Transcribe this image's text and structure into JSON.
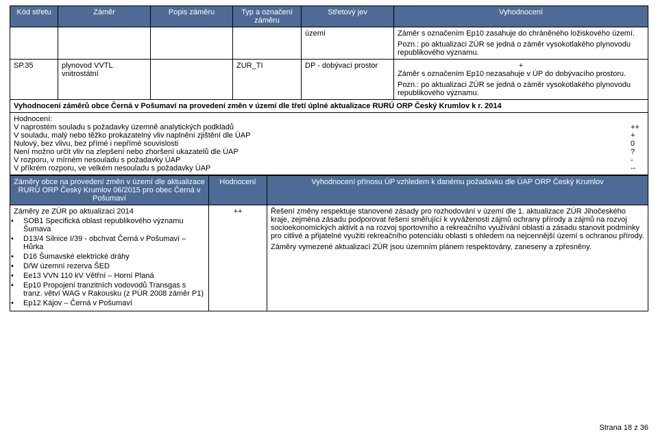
{
  "table1": {
    "headers": {
      "kod": "Kód střetu",
      "zamer": "Záměr",
      "popis": "Popis záměru",
      "typ": "Typ a označení záměru",
      "stret": "Střetový jev",
      "vyhod": "Vyhodnocení"
    },
    "row_empty": {
      "stret": "území",
      "vyhod_main": "Záměr s označením Ep10 zasahuje do chráněného ložiskového území.",
      "vyhod_pozn": "Pozn.: po aktualizaci ZÚR se jedná o záměr vysokotlakého plynovodu republikového významu."
    },
    "row_sp35": {
      "kod": "SP.35",
      "zamer": "plynovod VVTL vnitrostátní",
      "popis": "",
      "typ": "ZUR_TI",
      "stret": "DP - dobývací prostor",
      "vyhod_plus": "+",
      "vyhod_main": "Záměr s označením Ep10 nezasahuje v ÚP do dobývacího prostoru.",
      "vyhod_pozn": "Pozn.: po aktualizaci ZÚR se jedná o záměr vysokotlakého plynovodu republikového významu."
    },
    "section_title": "Vyhodnocení záměrů obce Černá v Pošumaví na provedení změn v území dle třetí úplné aktualizace RURÚ ORP Český Krumlov k r. 2014",
    "hodnoceni_label": "Hodnocení:",
    "criteria": [
      {
        "label": "V naprostém souladu s požadavky územně analytických podkladů",
        "value": "++"
      },
      {
        "label": "V souladu, malý nebo těžko prokazatelný vliv naplnění zjištění dle ÚAP",
        "value": "+"
      },
      {
        "label": "Nulový, bez vlivu, bez přímé i nepřímé souvislosti",
        "value": "0"
      },
      {
        "label": "Není možno určit vliv na zlepšení nebo zhoršení ukazatelů dle ÚAP",
        "value": "?"
      },
      {
        "label": "V rozporu, v mírném nesouladu s požadavky ÚAP",
        "value": "-"
      },
      {
        "label": "V příkrém rozporu, ve velkém nesouladu s požadavky ÚAP",
        "value": "--"
      }
    ]
  },
  "table2": {
    "headers": {
      "a": "Záměry obce na provedení změn v území dle aktualizace RURÚ ORP Český Krumlov 06/2015 pro obec Černá v Pošumaví",
      "b": "Hodnocení",
      "c": "Vyhodnocení přínosu ÚP vzhledem k danému požadavku dle ÚAP ORP Český Krumlov"
    },
    "row": {
      "a_title": "Záměry ze ZÚR po aktualizaci 2014",
      "a_items": [
        "SOB1 Specifická oblast republikového významu Šumava",
        "D13/4 Silnice I/39 - obchvat Černá v Pošumaví – Hůrka",
        "D16 Šumavské elektrické dráhy",
        "D/W územní rezerva ŠED",
        "Ee13 VVN 110 kV Větřní – Horní Planá",
        "Ep10 Propojení tranzitních vodovodů Transgas s tranz. větví WAG v Rakousku (z PÚR 2008 záměr P1)",
        "Ep12 Kájov – Černá v Pošumaví"
      ],
      "b": "++",
      "c_p1": "Řešení změny respektuje stanovené zásady pro rozhodování v území dle 1. aktualizace ZÚR Jihočeského kraje, zejména zásadu podporovat řešení směřující k vyváženosti zájmů ochrany přírody a zájmů na rozvoj socioekonomických aktivit a na rozvoj sportovního a rekreačního využívání oblasti a zásadu stanovit podmínky pro citlivé a přijatelné využití rekreačního potenciálu oblasti s ohledem na nejcennější území s ochranou přírody.",
      "c_p2": "Záměry vymezené aktualizací ZÚR jsou územním plánem respektovány, zaneseny a zpřesněny."
    }
  },
  "footer": "Strana 18 z 36",
  "bullet": "•"
}
